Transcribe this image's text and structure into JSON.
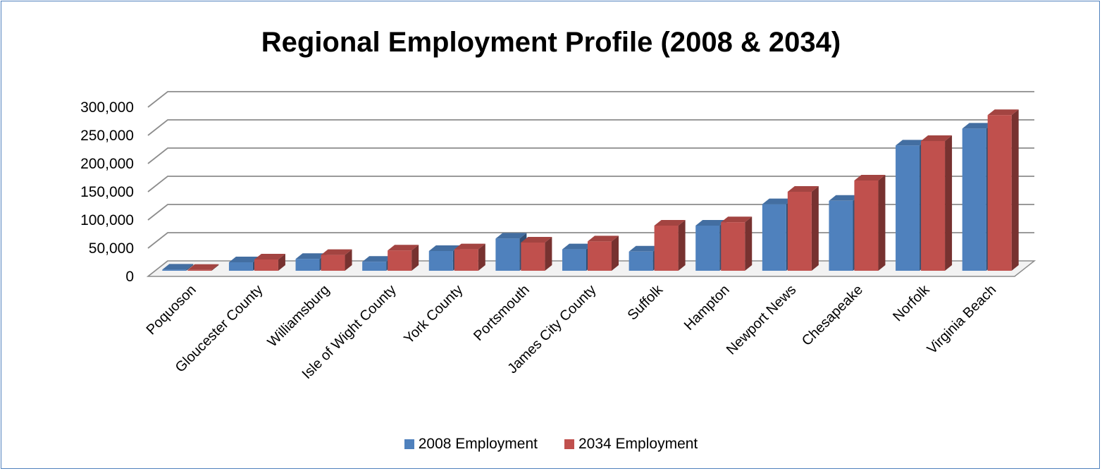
{
  "chart_data": {
    "type": "bar",
    "title": "Regional Employment Profile (2008 & 2034)",
    "categories": [
      "Poquoson",
      "Gloucester County",
      "Williamsburg",
      "Isle of Wight County",
      "York County",
      "Portsmouth",
      "James City County",
      "Suffolk",
      "Hampton",
      "Newport News",
      "Chesapeake",
      "Norfolk",
      "Virginia Beach"
    ],
    "series": [
      {
        "name": "2008 Employment",
        "color": "#4f81bd",
        "values": [
          2000,
          15000,
          21000,
          16000,
          35000,
          57000,
          38000,
          34000,
          80000,
          118000,
          124000,
          222000,
          252000
        ]
      },
      {
        "name": "2034 Employment",
        "color": "#c0504d",
        "values": [
          1500,
          20000,
          28000,
          36000,
          38000,
          50000,
          52000,
          80000,
          86000,
          140000,
          160000,
          230000,
          276000
        ]
      }
    ],
    "y_ticks": [
      "0",
      "50,000",
      "100,000",
      "150,000",
      "200,000",
      "250,000",
      "300,000"
    ],
    "ylim": [
      0,
      300000
    ],
    "grid": true,
    "legend_position": "bottom"
  }
}
